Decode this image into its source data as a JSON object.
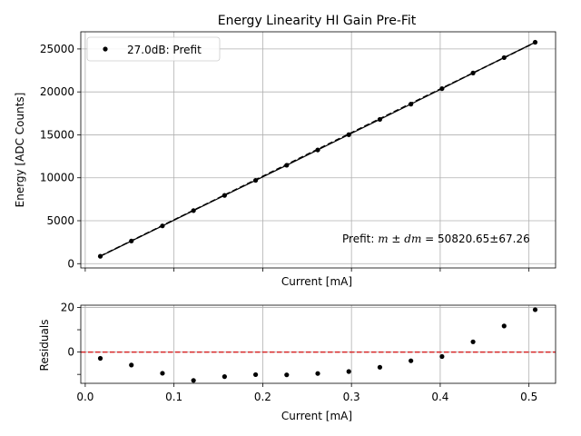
{
  "chart_data": [
    {
      "type": "line",
      "title": "Energy Linearity HI Gain Pre-Fit",
      "xlabel": "Current [mA]",
      "ylabel": "Energy [ADC Counts]",
      "xlim": [
        -0.005,
        0.53
      ],
      "ylim": [
        -500,
        27000
      ],
      "xticks": [
        0.0,
        0.1,
        0.2,
        0.3,
        0.4,
        0.5
      ],
      "yticks": [
        0,
        5000,
        10000,
        15000,
        20000,
        25000
      ],
      "ytick_labels": [
        "0",
        "5000",
        "10000",
        "15000",
        "20000",
        "25000"
      ],
      "grid": true,
      "legend_position": "top-left",
      "series": [
        {
          "name": "27.0dB: Prefit",
          "color": "#000000",
          "marker": "dot",
          "x": [
            0.017,
            0.052,
            0.087,
            0.122,
            0.157,
            0.192,
            0.227,
            0.262,
            0.297,
            0.332,
            0.367,
            0.402,
            0.437,
            0.472,
            0.507
          ],
          "y": [
            860,
            2640,
            4400,
            6180,
            7950,
            9700,
            11460,
            13240,
            15020,
            16800,
            18580,
            20380,
            22200,
            23990,
            25780
          ]
        }
      ],
      "fit_line": {
        "style": "dashed",
        "color": "#000000",
        "x": [
          0.017,
          0.507
        ],
        "y": [
          880,
          25760
        ]
      },
      "annotation": {
        "prefix": "Prefit:",
        "expr_m": "m",
        "expr_pm": " ± ",
        "expr_dm": "dm",
        "value": " = 50820.65±67.26"
      }
    },
    {
      "type": "scatter",
      "xlabel": "Current [mA]",
      "ylabel": "Residuals",
      "xlim": [
        -0.005,
        0.53
      ],
      "ylim": [
        -14,
        21
      ],
      "xticks": [
        0.0,
        0.1,
        0.2,
        0.3,
        0.4,
        0.5
      ],
      "xtick_labels": [
        "0.0",
        "0.1",
        "0.2",
        "0.3",
        "0.4",
        "0.5"
      ],
      "yticks": [
        0,
        20
      ],
      "yminor_ticks": [
        -10,
        10
      ],
      "ytick_labels": [
        "0",
        "20"
      ],
      "grid": true,
      "reference_line": {
        "y": 0,
        "style": "dashed",
        "color": "#d62728"
      },
      "series": [
        {
          "color": "#000000",
          "marker": "dot",
          "x": [
            0.017,
            0.052,
            0.087,
            0.122,
            0.157,
            0.192,
            0.227,
            0.262,
            0.297,
            0.332,
            0.367,
            0.402,
            0.437,
            0.472,
            0.507
          ],
          "y": [
            -2.8,
            -5.8,
            -9.5,
            -12.7,
            -11.0,
            -10.1,
            -10.2,
            -9.6,
            -8.7,
            -6.8,
            -3.9,
            -2.0,
            4.6,
            11.7,
            19.0
          ]
        }
      ]
    }
  ]
}
